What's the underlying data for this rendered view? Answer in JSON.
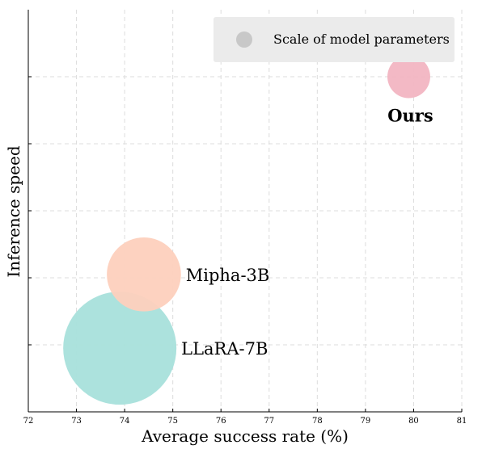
{
  "chart_data": {
    "type": "scatter",
    "xlabel": "Average success rate (%)",
    "ylabel": "Inference speed",
    "xlim": [
      72,
      81
    ],
    "x_ticks": [
      "72",
      "73",
      "74",
      "75",
      "76",
      "77",
      "78",
      "79",
      "80",
      "81"
    ],
    "ylim": [
      0,
      6
    ],
    "y_tick_labels_shown": false,
    "grid": true,
    "grid_style": "dashed",
    "legend": {
      "label": "Scale of model parameters",
      "placement": "top-right",
      "marker_color": "#c8c8c8"
    },
    "points": [
      {
        "label": "Ours",
        "x": 79.9,
        "y": 5.0,
        "size": 1,
        "color": "#f2b5c2",
        "label_bold": true,
        "label_position": "below"
      },
      {
        "label": "Mipha-3B",
        "x": 74.4,
        "y": 2.05,
        "size": 3,
        "color": "#fdd0bd",
        "label_bold": false,
        "label_position": "right"
      },
      {
        "label": "LLaRA-7B",
        "x": 73.9,
        "y": 0.95,
        "size": 7,
        "color": "#a8e0db",
        "label_bold": false,
        "label_position": "right"
      }
    ]
  }
}
